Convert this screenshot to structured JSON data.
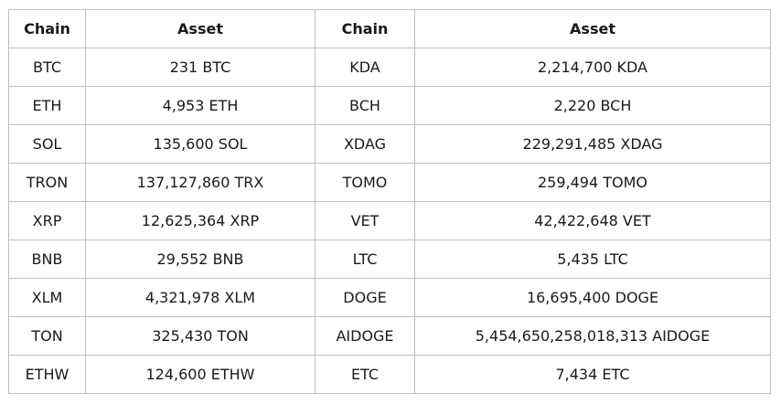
{
  "table": {
    "headers": [
      "Chain",
      "Asset",
      "Chain",
      "Asset"
    ],
    "rows": [
      [
        "BTC",
        "231 BTC",
        "KDA",
        "2,214,700 KDA"
      ],
      [
        "ETH",
        "4,953 ETH",
        "BCH",
        "2,220 BCH"
      ],
      [
        "SOL",
        "135,600 SOL",
        "XDAG",
        "229,291,485 XDAG"
      ],
      [
        "TRON",
        "137,127,860 TRX",
        "TOMO",
        "259,494 TOMO"
      ],
      [
        "XRP",
        "12,625,364 XRP",
        "VET",
        "42,422,648 VET"
      ],
      [
        "BNB",
        "29,552 BNB",
        "LTC",
        "5,435 LTC"
      ],
      [
        "XLM",
        "4,321,978 XLM",
        "DOGE",
        "16,695,400 DOGE"
      ],
      [
        "TON",
        "325,430 TON",
        "AIDOGE",
        "5,454,650,258,018,313 AIDOGE"
      ],
      [
        "ETHW",
        "124,600 ETHW",
        "ETC",
        "7,434 ETC"
      ]
    ]
  }
}
